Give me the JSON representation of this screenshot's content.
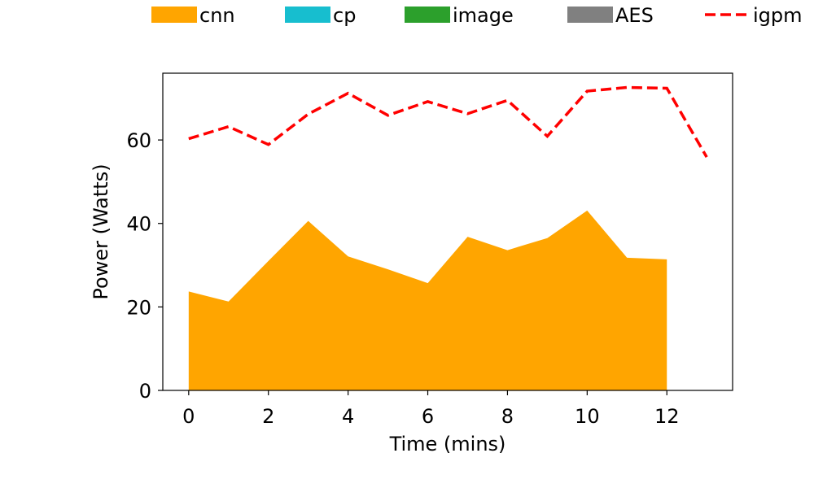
{
  "chart_data": {
    "type": "area",
    "title": "",
    "xlabel": "Time (mins)",
    "ylabel": "Power (Watts)",
    "xlim": [
      -0.65,
      13.65
    ],
    "ylim": [
      0,
      76
    ],
    "xticks": [
      0,
      2,
      4,
      6,
      8,
      10,
      12
    ],
    "yticks": [
      0,
      20,
      40,
      60
    ],
    "legend_position": "top",
    "series": [
      {
        "name": "cnn",
        "kind": "area",
        "color": "#FFA500",
        "x": [
          0,
          1,
          2,
          3,
          4,
          5,
          6,
          7,
          8,
          9,
          10,
          11,
          12
        ],
        "values": [
          23.7,
          21.3,
          31.0,
          40.6,
          32.1,
          29.0,
          25.7,
          36.8,
          33.6,
          36.5,
          43.1,
          31.8,
          31.4
        ]
      },
      {
        "name": "cp",
        "kind": "area",
        "color": "#17BECF",
        "x": [],
        "values": []
      },
      {
        "name": "image",
        "kind": "area",
        "color": "#2CA02C",
        "x": [],
        "values": []
      },
      {
        "name": "AES",
        "kind": "area",
        "color": "#808080",
        "x": [],
        "values": []
      },
      {
        "name": "igpm",
        "kind": "line",
        "style": "dashed",
        "color": "#FF0000",
        "x": [
          0,
          1,
          2,
          3,
          4,
          5,
          6,
          7,
          8,
          9,
          10,
          11,
          12,
          13
        ],
        "values": [
          60.3,
          63.2,
          58.9,
          66.2,
          71.2,
          65.9,
          69.2,
          66.3,
          69.5,
          60.9,
          71.7,
          72.6,
          72.4,
          55.9
        ]
      }
    ]
  }
}
